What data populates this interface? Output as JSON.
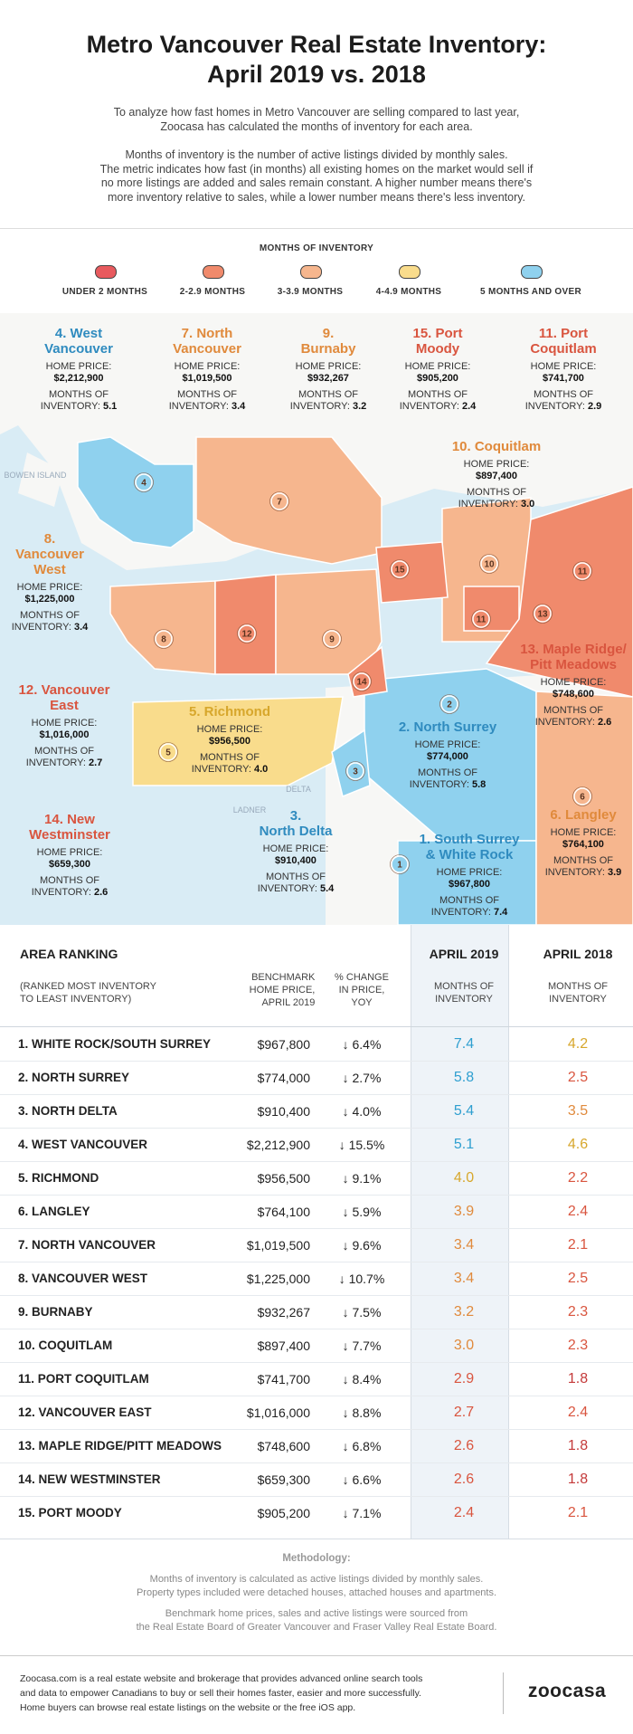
{
  "header": {
    "title": [
      "Metro Vancouver Real Estate Inventory:",
      "April 2019 vs. 2018"
    ],
    "intro": [
      "To analyze how fast homes in Metro Vancouver are selling compared to last year,",
      "Zoocasa has calculated the months of inventory for each area."
    ],
    "explanation": [
      "Months of inventory is the number of active listings divided by monthly sales.",
      "The metric indicates how fast (in months) all existing homes on the market would sell if",
      "no more listings are added and sales remain constant. A higher number means there's",
      "more inventory relative to sales, while a lower number means there's less inventory."
    ]
  },
  "legend": {
    "title": "MONTHS OF INVENTORY",
    "items": [
      {
        "label": "UNDER 2 MONTHS",
        "color": "#e85a5e"
      },
      {
        "label": "2-2.9 MONTHS",
        "color": "#f08a6c"
      },
      {
        "label": "3-3.9 MONTHS",
        "color": "#f6b68e"
      },
      {
        "label": "4-4.9 MONTHS",
        "color": "#f9dc8c"
      },
      {
        "label": "5 MONTHS AND OVER",
        "color": "#8fd1ee"
      }
    ]
  },
  "map": {
    "areas": [
      {
        "number": "4",
        "title": [
          "4. West",
          "Vancouver"
        ],
        "price_label": "HOME PRICE:",
        "price": "$2,212,900",
        "inventory_label": [
          "MONTHS OF",
          "INVENTORY:"
        ],
        "inventory": "5.1",
        "color": "#8fd1ee",
        "title_color": "#2f8bbf"
      },
      {
        "number": "7",
        "title": [
          "7. North",
          "Vancouver"
        ],
        "price_label": "HOME PRICE:",
        "price": "$1,019,500",
        "inventory_label": [
          "MONTHS OF",
          "INVENTORY:"
        ],
        "inventory": "3.4",
        "color": "#f6b68e",
        "title_color": "#e08a3c"
      },
      {
        "number": "9",
        "title": [
          "9.",
          "Burnaby"
        ],
        "price_label": "HOME PRICE:",
        "price": "$932,267",
        "inventory_label": [
          "MONTHS OF",
          "INVENTORY:"
        ],
        "inventory": "3.2",
        "color": "#f6b68e",
        "title_color": "#e08a3c"
      },
      {
        "number": "15",
        "title": [
          "15. Port",
          "Moody"
        ],
        "price_label": "HOME PRICE:",
        "price": "$905,200",
        "inventory_label": [
          "MONTHS OF",
          "INVENTORY:"
        ],
        "inventory": "2.4",
        "color": "#f08a6c",
        "title_color": "#d9553f"
      },
      {
        "number": "11",
        "title": [
          "11. Port",
          "Coquitlam"
        ],
        "price_label": "HOME PRICE:",
        "price": "$741,700",
        "inventory_label": [
          "MONTHS OF",
          "INVENTORY:"
        ],
        "inventory": "2.9",
        "color": "#f08a6c",
        "title_color": "#d9553f"
      },
      {
        "number": "10",
        "title": [
          "10. Coquitlam"
        ],
        "price_label": "HOME PRICE:",
        "price": "$897,400",
        "inventory_label": [
          "MONTHS OF",
          "INVENTORY:"
        ],
        "inventory": "3.0",
        "color": "#f6b68e",
        "title_color": "#e08a3c"
      },
      {
        "number": "8",
        "title": [
          "8.",
          "Vancouver",
          "West"
        ],
        "price_label": "HOME PRICE:",
        "price": "$1,225,000",
        "inventory_label": [
          "MONTHS OF",
          "INVENTORY:"
        ],
        "inventory": "3.4",
        "color": "#f6b68e",
        "title_color": "#e08a3c"
      },
      {
        "number": "12",
        "title": [
          "12. Vancouver",
          "East"
        ],
        "price_label": "HOME PRICE:",
        "price": "$1,016,000",
        "inventory_label": [
          "MONTHS OF",
          "INVENTORY:"
        ],
        "inventory": "2.7",
        "color": "#f08a6c",
        "title_color": "#d9553f"
      },
      {
        "number": "5",
        "title": [
          "5. Richmond"
        ],
        "price_label": "HOME PRICE:",
        "price": "$956,500",
        "inventory_label": [
          "MONTHS OF",
          "INVENTORY:"
        ],
        "inventory": "4.0",
        "color": "#f9dc8c",
        "title_color": "#d7a72c"
      },
      {
        "number": "2",
        "title": [
          "2. North Surrey"
        ],
        "price_label": "HOME PRICE:",
        "price": "$774,000",
        "inventory_label": [
          "MONTHS OF",
          "INVENTORY:"
        ],
        "inventory": "5.8",
        "color": "#8fd1ee",
        "title_color": "#2f8bbf"
      },
      {
        "number": "13",
        "title": [
          "13. Maple Ridge/",
          "Pitt Meadows"
        ],
        "price_label": "HOME PRICE:",
        "price": "$748,600",
        "inventory_label": [
          "MONTHS OF",
          "INVENTORY:"
        ],
        "inventory": "2.6",
        "color": "#f08a6c",
        "title_color": "#d9553f"
      },
      {
        "number": "14",
        "title": [
          "14. New",
          "Westminster"
        ],
        "price_label": "HOME PRICE:",
        "price": "$659,300",
        "inventory_label": [
          "MONTHS OF",
          "INVENTORY:"
        ],
        "inventory": "2.6",
        "color": "#f08a6c",
        "title_color": "#d9553f"
      },
      {
        "number": "3",
        "title": [
          "3.",
          "North Delta"
        ],
        "price_label": "HOME PRICE:",
        "price": "$910,400",
        "inventory_label": [
          "MONTHS OF",
          "INVENTORY:"
        ],
        "inventory": "5.4",
        "color": "#8fd1ee",
        "title_color": "#2f8bbf"
      },
      {
        "number": "1",
        "title": [
          "1. South Surrey",
          "& White Rock"
        ],
        "price_label": "HOME PRICE:",
        "price": "$967,800",
        "inventory_label": [
          "MONTHS OF",
          "INVENTORY:"
        ],
        "inventory": "7.4",
        "color": "#8fd1ee",
        "title_color": "#2f8bbf"
      },
      {
        "number": "6",
        "title": [
          "6. Langley"
        ],
        "price_label": "HOME PRICE:",
        "price": "$764,100",
        "inventory_label": [
          "MONTHS OF",
          "INVENTORY:"
        ],
        "inventory": "3.9",
        "color": "#f6b68e",
        "title_color": "#e08a3c"
      }
    ],
    "places": [
      "BOWEN ISLAND",
      "DELTA",
      "LADNER"
    ]
  },
  "table": {
    "title": "AREA RANKING",
    "subtitle": [
      "(RANKED MOST INVENTORY",
      "TO LEAST INVENTORY)"
    ],
    "price_header": [
      "BENCHMARK",
      "HOME PRICE,",
      "APRIL 2019"
    ],
    "change_header": [
      "% CHANGE",
      "IN PRICE,",
      "YOY"
    ],
    "year1": "APRIL 2019",
    "year1_header": [
      "MONTHS OF",
      "INVENTORY"
    ],
    "year2": "APRIL 2018",
    "year2_header": [
      "MONTHS OF",
      "INVENTORY"
    ],
    "rows": [
      {
        "area": "1. WHITE ROCK/SOUTH SURREY",
        "price": "$967,800",
        "change": "↓ 6.4%",
        "inv2019": "7.4",
        "inv2019_color": "#2f9fd0",
        "inv2018": "4.2",
        "inv2018_color": "#d7a72c"
      },
      {
        "area": "2. NORTH SURREY",
        "price": "$774,000",
        "change": "↓ 2.7%",
        "inv2019": "5.8",
        "inv2019_color": "#2f9fd0",
        "inv2018": "2.5",
        "inv2018_color": "#d9553f"
      },
      {
        "area": "3. NORTH DELTA",
        "price": "$910,400",
        "change": "↓ 4.0%",
        "inv2019": "5.4",
        "inv2019_color": "#2f9fd0",
        "inv2018": "3.5",
        "inv2018_color": "#e08a3c"
      },
      {
        "area": "4. WEST VANCOUVER",
        "price": "$2,212,900",
        "change": "↓ 15.5%",
        "inv2019": "5.1",
        "inv2019_color": "#2f9fd0",
        "inv2018": "4.6",
        "inv2018_color": "#d7a72c"
      },
      {
        "area": "5. RICHMOND",
        "price": "$956,500",
        "change": "↓ 9.1%",
        "inv2019": "4.0",
        "inv2019_color": "#d7a72c",
        "inv2018": "2.2",
        "inv2018_color": "#d9553f"
      },
      {
        "area": "6. LANGLEY",
        "price": "$764,100",
        "change": "↓ 5.9%",
        "inv2019": "3.9",
        "inv2019_color": "#e08a3c",
        "inv2018": "2.4",
        "inv2018_color": "#d9553f"
      },
      {
        "area": "7. NORTH VANCOUVER",
        "price": "$1,019,500",
        "change": "↓ 9.6%",
        "inv2019": "3.4",
        "inv2019_color": "#e08a3c",
        "inv2018": "2.1",
        "inv2018_color": "#d9553f"
      },
      {
        "area": "8. VANCOUVER WEST",
        "price": "$1,225,000",
        "change": "↓ 10.7%",
        "inv2019": "3.4",
        "inv2019_color": "#e08a3c",
        "inv2018": "2.5",
        "inv2018_color": "#d9553f"
      },
      {
        "area": "9. BURNABY",
        "price": "$932,267",
        "change": "↓ 7.5%",
        "inv2019": "3.2",
        "inv2019_color": "#e08a3c",
        "inv2018": "2.3",
        "inv2018_color": "#d9553f"
      },
      {
        "area": "10. COQUITLAM",
        "price": "$897,400",
        "change": "↓ 7.7%",
        "inv2019": "3.0",
        "inv2019_color": "#e08a3c",
        "inv2018": "2.3",
        "inv2018_color": "#d9553f"
      },
      {
        "area": "11. PORT COQUITLAM",
        "price": "$741,700",
        "change": "↓ 8.4%",
        "inv2019": "2.9",
        "inv2019_color": "#d9553f",
        "inv2018": "1.8",
        "inv2018_color": "#c43a3a"
      },
      {
        "area": "12. VANCOUVER EAST",
        "price": "$1,016,000",
        "change": "↓ 8.8%",
        "inv2019": "2.7",
        "inv2019_color": "#d9553f",
        "inv2018": "2.4",
        "inv2018_color": "#d9553f"
      },
      {
        "area": "13. MAPLE RIDGE/PITT MEADOWS",
        "price": "$748,600",
        "change": "↓ 6.8%",
        "inv2019": "2.6",
        "inv2019_color": "#d9553f",
        "inv2018": "1.8",
        "inv2018_color": "#c43a3a"
      },
      {
        "area": "14. NEW WESTMINSTER",
        "price": "$659,300",
        "change": "↓ 6.6%",
        "inv2019": "2.6",
        "inv2019_color": "#d9553f",
        "inv2018": "1.8",
        "inv2018_color": "#c43a3a"
      },
      {
        "area": "15. PORT MOODY",
        "price": "$905,200",
        "change": "↓ 7.1%",
        "inv2019": "2.4",
        "inv2019_color": "#d9553f",
        "inv2018": "2.1",
        "inv2018_color": "#d9553f"
      }
    ]
  },
  "methodology": {
    "title": "Methodology:",
    "lines": [
      "Months of inventory is calculated as active listings divided by monthly sales.",
      "Property types included were detached houses, attached houses and apartments.",
      "Benchmark home prices, sales and active listings were sourced from",
      "the Real Estate Board of Greater Vancouver and Fraser Valley Real Estate Board."
    ]
  },
  "footer": {
    "lines": [
      "Zoocasa.com is a real estate website and brokerage that provides advanced online search tools",
      "and data to empower Canadians to buy or sell their homes faster, easier and more successfully.",
      "Home buyers can browse real estate listings on the website or the free iOS app."
    ],
    "logo": "zoocasa"
  }
}
